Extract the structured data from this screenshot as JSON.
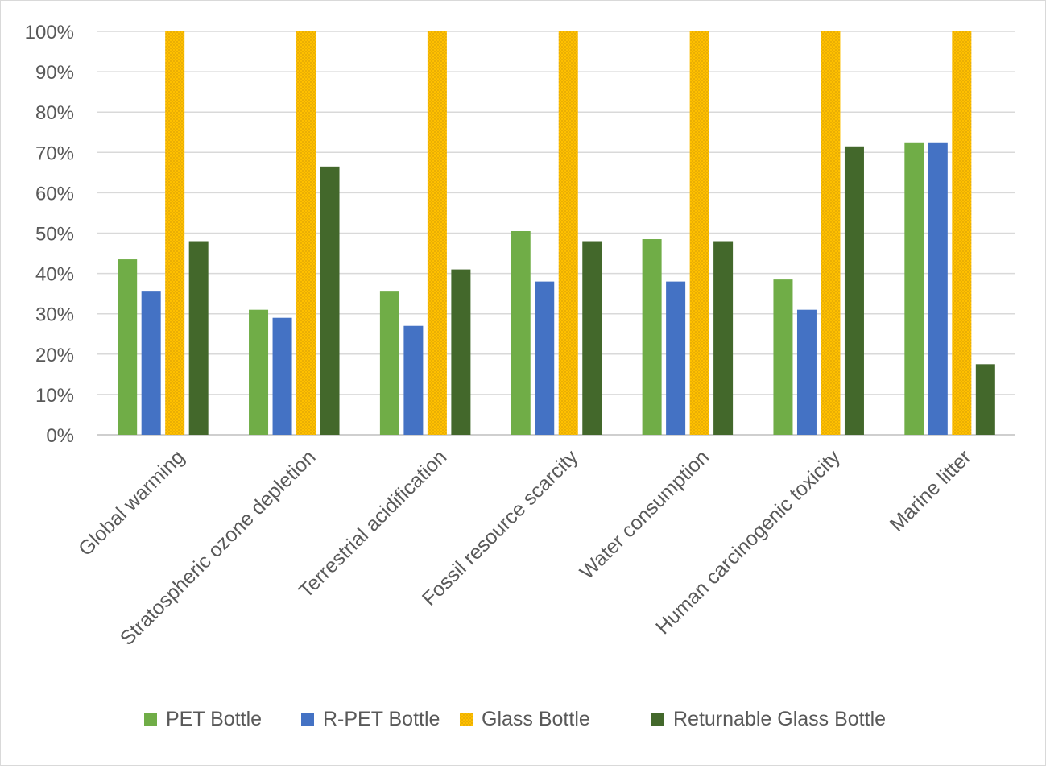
{
  "chart_data": {
    "type": "bar",
    "title": "",
    "xlabel": "",
    "ylabel": "",
    "ylim": [
      0,
      100
    ],
    "y_ticks": [
      "0%",
      "10%",
      "20%",
      "30%",
      "40%",
      "50%",
      "60%",
      "70%",
      "80%",
      "90%",
      "100%"
    ],
    "grid": true,
    "legend_position": "bottom",
    "categories": [
      "Global warming",
      "Stratospheric ozone depletion",
      "Terrestrial acidification",
      "Fossil resource scarcity",
      "Water consumption",
      "Human carcinogenic toxicity",
      "Marine litter"
    ],
    "series": [
      {
        "name": "PET Bottle",
        "color": "#70ad47",
        "values": [
          43.5,
          31,
          35.5,
          50.5,
          48.5,
          38.5,
          72.5
        ]
      },
      {
        "name": "R-PET Bottle",
        "color": "#4472c4",
        "values": [
          35.5,
          29,
          27,
          38,
          38,
          31,
          72.5
        ]
      },
      {
        "name": "Glass Bottle",
        "color": "#ffc000",
        "pattern": "dotted",
        "values": [
          100,
          100,
          100,
          100,
          100,
          100,
          100
        ]
      },
      {
        "name": "Returnable Glass Bottle",
        "color": "#43682b",
        "values": [
          48,
          66.5,
          41,
          48,
          48,
          71.5,
          17.5
        ]
      }
    ]
  }
}
